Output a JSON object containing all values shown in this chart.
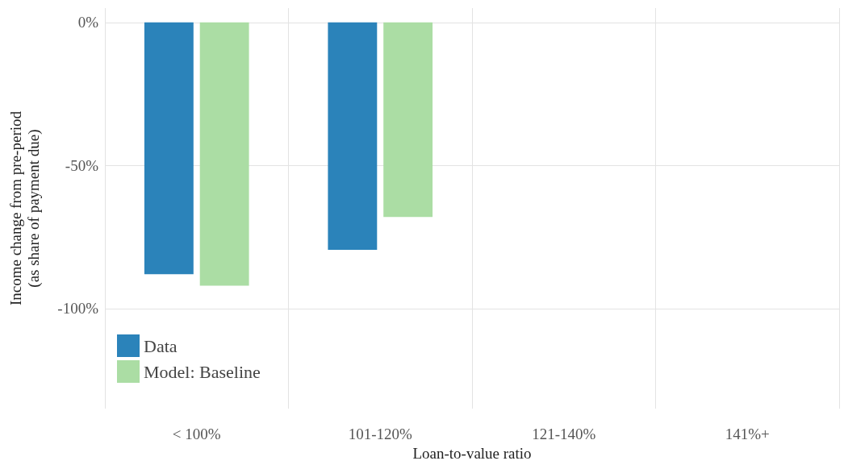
{
  "chart_data": {
    "type": "bar",
    "xlabel": "Loan-to-value ratio",
    "ylabel": "Income change from pre-period\n(as share of payment due)",
    "categories": [
      "< 100%",
      "101-120%",
      "121-140%",
      "141%+"
    ],
    "series": [
      {
        "name": "Data",
        "color": "#2b83ba",
        "values": [
          -88,
          -79.5,
          null,
          null
        ]
      },
      {
        "name": "Model: Baseline",
        "color": "#abdda4",
        "values": [
          -92,
          -68,
          null,
          null
        ]
      }
    ],
    "ylim": [
      -135,
      5
    ],
    "yticks": [
      {
        "value": 0,
        "label": "0%"
      },
      {
        "value": -50,
        "label": "-50%"
      },
      {
        "value": -100,
        "label": "-100%"
      }
    ],
    "grid": true,
    "legend": "bottom left"
  }
}
